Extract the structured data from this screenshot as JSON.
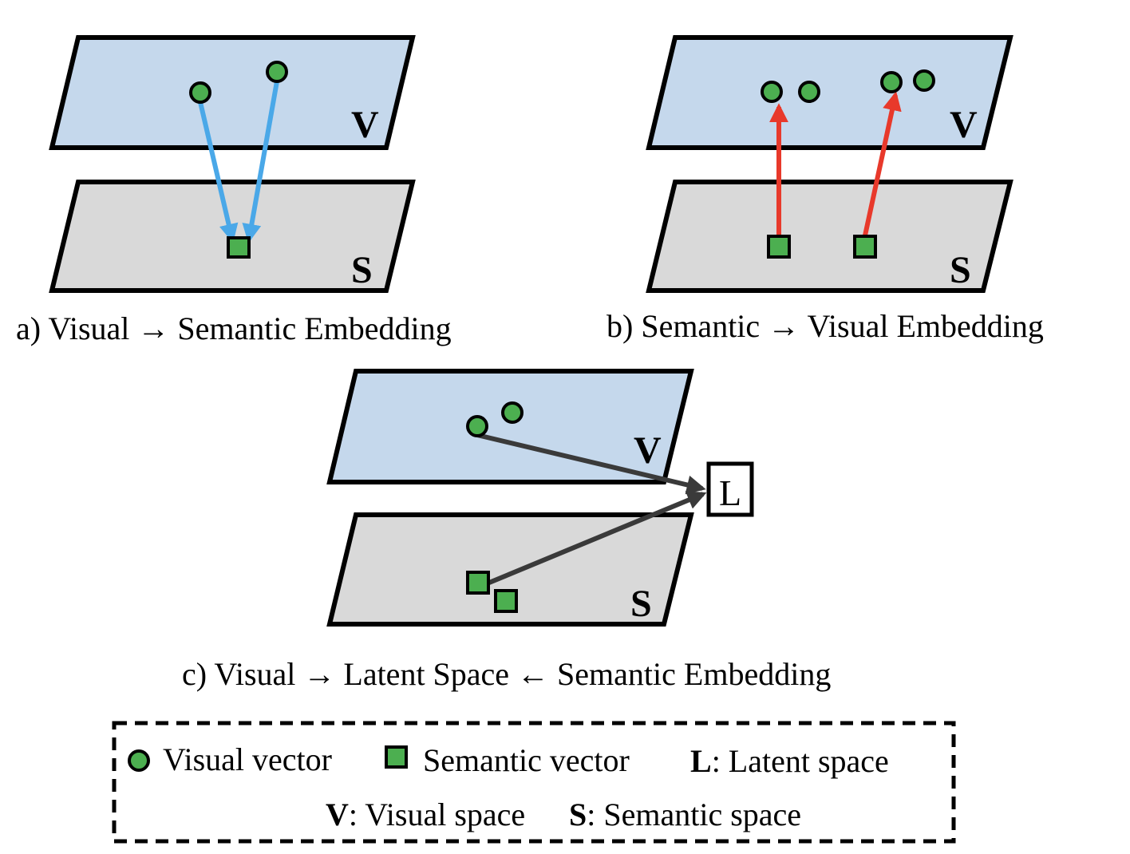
{
  "panels": {
    "a": {
      "caption": "a) Visual → Semantic Embedding",
      "visual_label": "V",
      "semantic_label": "S"
    },
    "b": {
      "caption": "b) Semantic → Visual Embedding",
      "visual_label": "V",
      "semantic_label": "S"
    },
    "c": {
      "caption": "c) Visual → Latent Space ← Semantic Embedding",
      "visual_label": "V",
      "semantic_label": "S",
      "latent_label": "L"
    }
  },
  "legend": {
    "visual_vector": "Visual vector",
    "semantic_vector": "Semantic vector",
    "latent_key": "L",
    "latent_desc": ": Latent space",
    "visual_key": "V",
    "visual_desc": ": Visual space",
    "semantic_key": "S",
    "semantic_desc": ": Semantic space"
  },
  "colors": {
    "visual_plane": "#c5d8ec",
    "semantic_plane": "#d9d9d9",
    "vector_fill": "#4caf50",
    "arrow_visual_to_semantic": "#4aa8e8",
    "arrow_semantic_to_visual": "#e8392b",
    "arrow_latent": "#3a3a3a"
  }
}
